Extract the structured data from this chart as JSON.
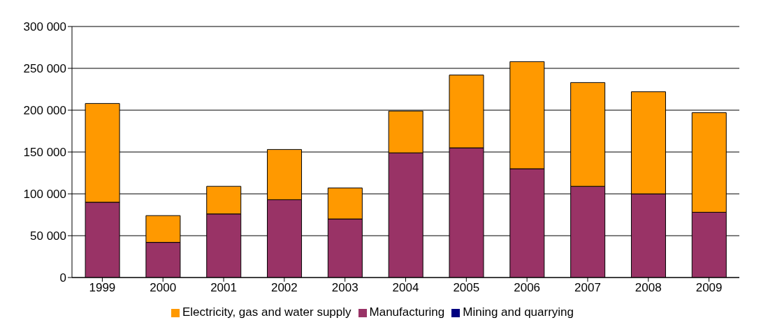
{
  "chart_data": {
    "type": "bar",
    "stacked": true,
    "categories": [
      "1999",
      "2000",
      "2001",
      "2002",
      "2003",
      "2004",
      "2005",
      "2006",
      "2007",
      "2008",
      "2009"
    ],
    "series": [
      {
        "name": "Mining and quarrying",
        "color": "#000080",
        "values": [
          0,
          0,
          0,
          0,
          0,
          0,
          0,
          0,
          0,
          0,
          0
        ]
      },
      {
        "name": "Manufacturing",
        "color": "#993366",
        "values": [
          90000,
          42000,
          76000,
          93000,
          70000,
          149000,
          155000,
          130000,
          109000,
          100000,
          78000
        ]
      },
      {
        "name": "Electricity, gas and water supply",
        "color": "#ff9900",
        "values": [
          118000,
          32000,
          33000,
          60000,
          37000,
          50000,
          87000,
          128000,
          124000,
          122000,
          119000
        ]
      }
    ],
    "ylim": [
      0,
      300000
    ],
    "yticks": [
      0,
      {
        "value": 50000,
        "label": "50 000"
      },
      {
        "value": 100000,
        "label": "100 000"
      },
      {
        "value": 150000,
        "label": "150 000"
      },
      {
        "value": 200000,
        "label": "200 000"
      },
      {
        "value": 250000,
        "label": "250 000"
      },
      {
        "value": 300000,
        "label": "300 000"
      }
    ],
    "grid": "y",
    "legend": "bottom"
  }
}
